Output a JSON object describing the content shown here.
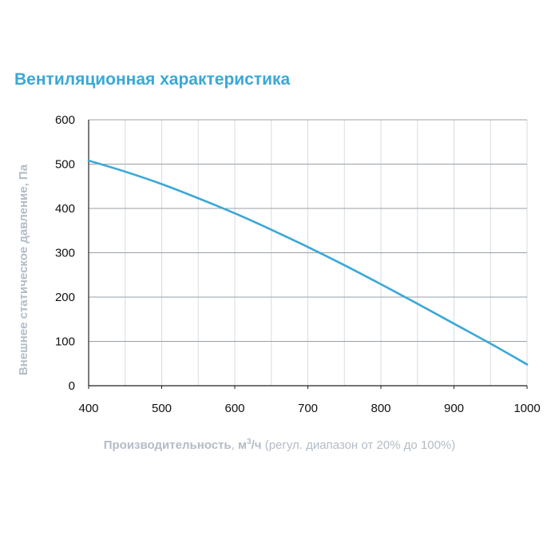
{
  "chart_data": {
    "type": "line",
    "title": "Вентиляционная характеристика",
    "xlabel": {
      "main": "Производительность",
      "sep": ",",
      "unit_prefix": "м",
      "unit_power": "3",
      "unit_suffix": "/ч",
      "note": "(регул. диапазон от 20% до 100%)"
    },
    "ylabel": "Внешнее статическое давление, Па",
    "xlim": [
      400,
      1000
    ],
    "ylim": [
      0,
      600
    ],
    "xticks": [
      400,
      500,
      600,
      700,
      800,
      900,
      1000
    ],
    "yticks": [
      0,
      100,
      200,
      300,
      400,
      500,
      600
    ],
    "x_minor_grid": [
      450,
      550,
      650,
      750,
      850,
      950
    ],
    "grid": true,
    "series": [
      {
        "name": "Вентиляционная характеристика",
        "color": "#3aa8d6",
        "x": [
          400,
          450,
          500,
          550,
          600,
          650,
          700,
          750,
          800,
          850,
          900,
          950,
          1000
        ],
        "y": [
          508,
          483,
          455,
          423,
          389,
          352,
          313,
          272,
          229,
          185,
          140,
          95,
          48
        ]
      }
    ]
  }
}
